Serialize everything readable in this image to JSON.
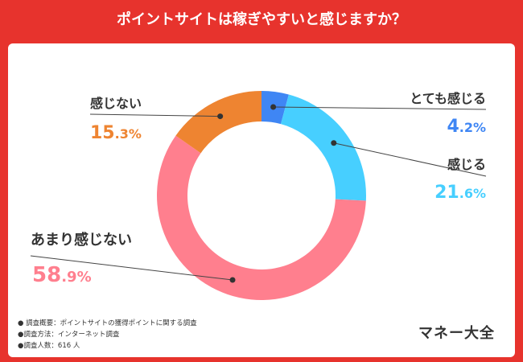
{
  "header": {
    "title": "ポイントサイトは稼ぎやすいと感じますか？"
  },
  "chart_data": {
    "type": "pie",
    "donut": true,
    "categories": [
      "とても感じる",
      "感じる",
      "あまり感じない",
      "感じない"
    ],
    "values": [
      4.2,
      21.6,
      58.9,
      15.3
    ],
    "units": "%",
    "colors": [
      "#3F86F4",
      "#47CFFF",
      "#FF7F8E",
      "#EE8431"
    ]
  },
  "labels": [
    {
      "name": "とても感じる",
      "int": "4",
      "dec": ".2",
      "pct": "%"
    },
    {
      "name": "感じる",
      "int": "21",
      "dec": ".6",
      "pct": "%"
    },
    {
      "name": "あまり感じない",
      "int": "58",
      "dec": ".9",
      "pct": "%"
    },
    {
      "name": "感じない",
      "int": "15",
      "dec": ".3",
      "pct": "%"
    }
  ],
  "notes": [
    "● 調査概要：ポイントサイトの獲得ポイントに関する調査",
    "●調査方法：インターネット調査",
    "●調査人数：616 人"
  ],
  "brand": "マネー大全"
}
